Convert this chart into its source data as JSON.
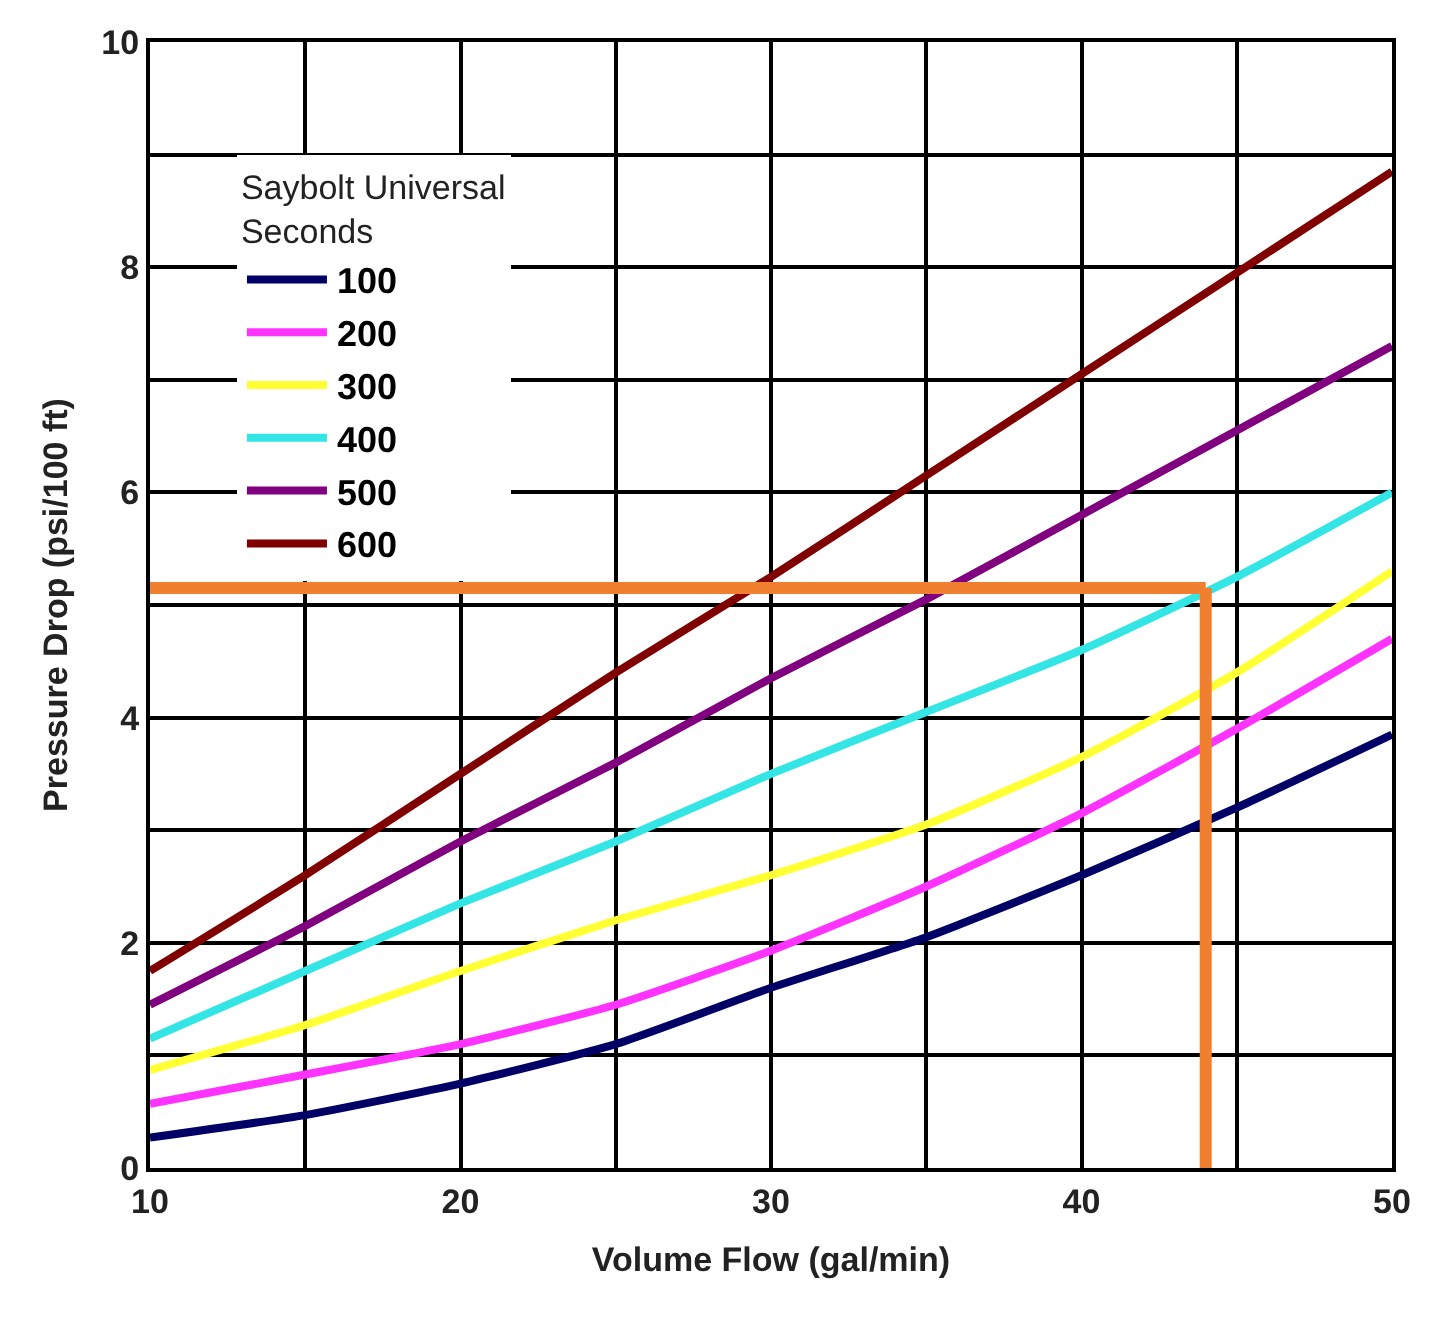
{
  "chart_data": {
    "type": "line",
    "xlabel": "Volume Flow (gal/min)",
    "ylabel": "Pressure Drop (psi/100 ft)",
    "legend_title": "Saybolt Universal\nSeconds",
    "x": [
      10,
      15,
      20,
      25,
      30,
      35,
      40,
      45,
      50
    ],
    "series": [
      {
        "name": "100",
        "color": "#000066",
        "values": [
          0.27,
          0.47,
          0.75,
          1.1,
          1.6,
          2.05,
          2.6,
          3.2,
          3.85
        ]
      },
      {
        "name": "200",
        "color": "#ff33ff",
        "values": [
          0.57,
          0.83,
          1.1,
          1.45,
          1.93,
          2.5,
          3.15,
          3.9,
          4.7
        ]
      },
      {
        "name": "300",
        "color": "#ffff33",
        "values": [
          0.87,
          1.27,
          1.75,
          2.2,
          2.6,
          3.05,
          3.65,
          4.4,
          5.3
        ]
      },
      {
        "name": "400",
        "color": "#33e5e5",
        "values": [
          1.15,
          1.75,
          2.35,
          2.9,
          3.5,
          4.05,
          4.6,
          5.25,
          6.0
        ]
      },
      {
        "name": "500",
        "color": "#800080",
        "values": [
          1.45,
          2.15,
          2.9,
          3.6,
          4.35,
          5.05,
          5.8,
          6.55,
          7.3
        ]
      },
      {
        "name": "600",
        "color": "#800000",
        "values": [
          1.75,
          2.6,
          3.5,
          4.4,
          5.25,
          6.15,
          7.05,
          7.95,
          8.85
        ]
      }
    ],
    "xlim": [
      10,
      50
    ],
    "ylim": [
      0,
      10
    ],
    "xticks": [
      10,
      {
        "value": 15,
        "label": null
      },
      20,
      {
        "value": 25,
        "label": null
      },
      30,
      {
        "value": 35,
        "label": null
      },
      40,
      {
        "value": 45,
        "label": null
      },
      50
    ],
    "yticks": [
      0,
      {
        "value": 1,
        "label": null
      },
      2,
      {
        "value": 3,
        "label": null
      },
      4,
      {
        "value": 5,
        "label": null
      },
      6,
      {
        "value": 7,
        "label": null
      },
      8,
      {
        "value": 9,
        "label": null
      },
      10
    ],
    "ref_lines": [
      {
        "axis": "y",
        "value": 5.15,
        "color": "#f08030"
      },
      {
        "axis": "x",
        "value": 44,
        "color": "#f08030"
      }
    ],
    "grid": true,
    "legend": "top left",
    "marker": "none",
    "line_style": "solid"
  }
}
